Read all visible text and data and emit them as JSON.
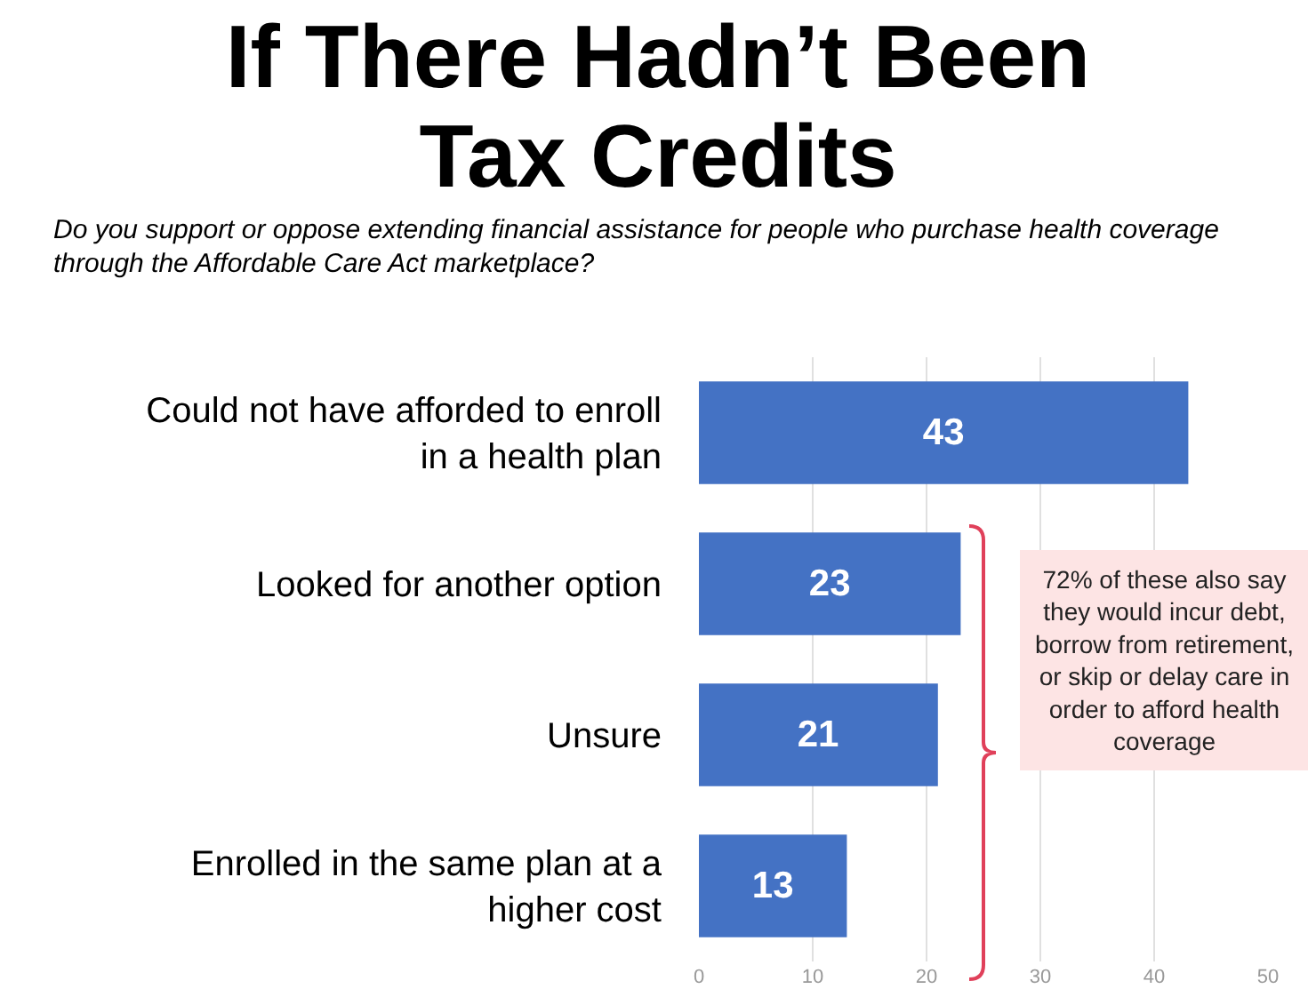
{
  "chart_data": {
    "type": "bar",
    "orientation": "horizontal",
    "title": "If There Hadn’t Been Tax Credits",
    "subtitle": "Do you support or oppose extending financial assistance for people who purchase health coverage through the Affordable Care Act marketplace?",
    "categories": [
      "Could not have afforded to enroll in a health plan",
      "Looked for another option",
      "Unsure",
      "Enrolled in the same plan at a higher cost"
    ],
    "values": [
      43,
      23,
      21,
      13
    ],
    "color": "#4472c4",
    "data_labels": true,
    "xlim": [
      0,
      50
    ],
    "xticks": [
      0,
      10,
      20,
      30,
      40,
      50
    ],
    "grid": "x",
    "legend": false,
    "annotations": [
      "72% of these also say they would incur debt, borrow from retirement, or skip or delay care in order to afford health coverage"
    ]
  }
}
